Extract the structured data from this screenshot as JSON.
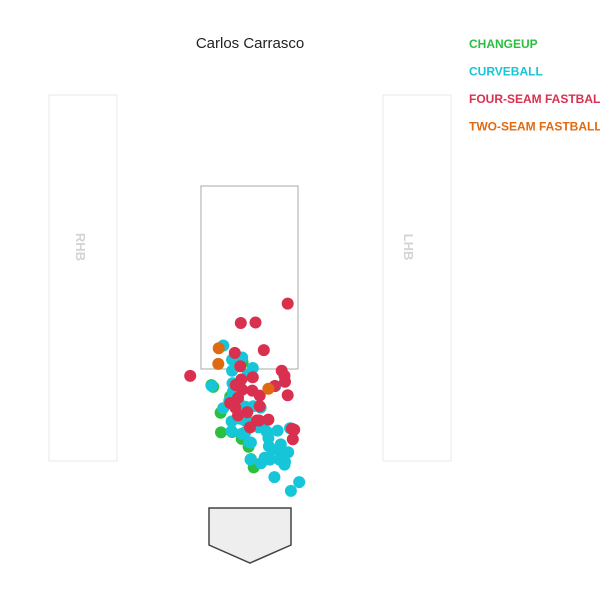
{
  "chart_data": {
    "type": "scatter",
    "title": "Carlos Carrasco",
    "xlabel": "",
    "ylabel": "",
    "xlim": [
      -30,
      30
    ],
    "ylim": [
      -10,
      50
    ],
    "batter_boxes": {
      "left": "RHB",
      "right": "LHB"
    },
    "series": [
      {
        "name": "CHANGEUP",
        "color": "#2bbf3f",
        "points": [
          [
            -1.6,
            33.8
          ],
          [
            -8.4,
            28.9
          ],
          [
            -8.0,
            28.5
          ],
          [
            -4.3,
            26.4
          ],
          [
            -6.4,
            22.9
          ],
          [
            -2.6,
            28.2
          ],
          [
            -3.3,
            24.6
          ],
          [
            -1.9,
            23.5
          ],
          [
            -1.8,
            22.8
          ],
          [
            -0.9,
            22.4
          ],
          [
            -1.0,
            21.9
          ],
          [
            3.1,
            20.9
          ],
          [
            -3.9,
            18.7
          ],
          [
            -6.3,
            18.6
          ],
          [
            -1.8,
            17.2
          ],
          [
            -0.3,
            15.5
          ],
          [
            0.2,
            12.8
          ],
          [
            0.8,
            11.0
          ]
        ]
      },
      {
        "name": "CURVEBALL",
        "color": "#16c6d8",
        "points": [
          [
            -5.8,
            37.5
          ],
          [
            -3.9,
            34.4
          ],
          [
            -1.7,
            34.9
          ],
          [
            0.6,
            32.6
          ],
          [
            -3.9,
            32.0
          ],
          [
            -0.5,
            31.2
          ],
          [
            0.2,
            30.8
          ],
          [
            -8.3,
            28.7
          ],
          [
            -3.8,
            29.3
          ],
          [
            -3.7,
            27.5
          ],
          [
            -1.9,
            28.1
          ],
          [
            5.5,
            28.7
          ],
          [
            -4.5,
            25.5
          ],
          [
            -3.4,
            25.7
          ],
          [
            -2.5,
            25.2
          ],
          [
            -1.0,
            24.2
          ],
          [
            0.7,
            24.3
          ],
          [
            2.3,
            24.0
          ],
          [
            -5.8,
            23.9
          ],
          [
            -4.0,
            21.0
          ],
          [
            -2.2,
            21.6
          ],
          [
            -1.1,
            21.2
          ],
          [
            1.9,
            19.7
          ],
          [
            2.1,
            20.6
          ],
          [
            -4.0,
            18.9
          ],
          [
            -1.8,
            18.3
          ],
          [
            -1.0,
            18.7
          ],
          [
            3.6,
            18.8
          ],
          [
            4.0,
            17.4
          ],
          [
            6.0,
            19.0
          ],
          [
            8.7,
            19.5
          ],
          [
            -0.2,
            16.5
          ],
          [
            0.2,
            16.4
          ],
          [
            4.1,
            15.6
          ],
          [
            4.9,
            14.8
          ],
          [
            6.7,
            16.0
          ],
          [
            6.4,
            14.6
          ],
          [
            8.3,
            14.3
          ],
          [
            3.2,
            13.1
          ],
          [
            0.1,
            12.7
          ],
          [
            4.3,
            12.7
          ],
          [
            6.4,
            12.7
          ],
          [
            7.6,
            12.2
          ],
          [
            7.5,
            11.6
          ],
          [
            2.4,
            11.9
          ],
          [
            5.3,
            8.9
          ],
          [
            10.7,
            7.8
          ],
          [
            8.9,
            5.9
          ]
        ]
      },
      {
        "name": "FOUR-SEAM FASTBALL",
        "color": "#d8304e",
        "points": [
          [
            8.2,
            46.6
          ],
          [
            -2.0,
            42.4
          ],
          [
            1.2,
            42.5
          ],
          [
            3.0,
            36.5
          ],
          [
            -3.3,
            35.9
          ],
          [
            -2.1,
            33.0
          ],
          [
            6.9,
            32.0
          ],
          [
            0.6,
            30.6
          ],
          [
            7.5,
            30.9
          ],
          [
            -1.9,
            30.1
          ],
          [
            7.6,
            29.6
          ],
          [
            -3.1,
            28.9
          ],
          [
            -1.7,
            27.9
          ],
          [
            5.4,
            28.7
          ],
          [
            0.5,
            27.7
          ],
          [
            2.1,
            26.6
          ],
          [
            8.2,
            26.7
          ],
          [
            -2.6,
            26.1
          ],
          [
            -4.3,
            25.0
          ],
          [
            -3.2,
            24.0
          ],
          [
            2.1,
            24.3
          ],
          [
            -2.6,
            22.3
          ],
          [
            -0.6,
            23.0
          ],
          [
            1.5,
            21.2
          ],
          [
            2.0,
            21.2
          ],
          [
            4.0,
            21.4
          ],
          [
            9.1,
            19.4
          ],
          [
            9.6,
            19.2
          ],
          [
            0.0,
            19.7
          ],
          [
            9.3,
            17.1
          ],
          [
            -13.0,
            30.9
          ]
        ]
      },
      {
        "name": "TWO-SEAM FASTBALL",
        "color": "#e06a12",
        "points": [
          [
            -6.8,
            36.9
          ],
          [
            -6.9,
            33.5
          ],
          [
            4.0,
            28.1
          ]
        ]
      }
    ]
  }
}
